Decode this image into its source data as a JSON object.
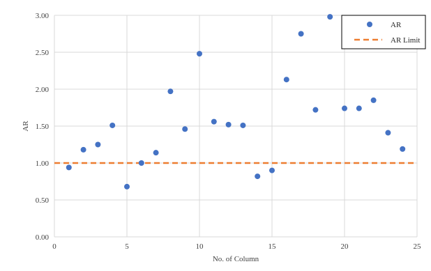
{
  "chart_data": {
    "type": "scatter",
    "title": "",
    "xlabel": "No. of Column",
    "ylabel": "AR",
    "xlim": [
      0,
      25
    ],
    "ylim": [
      0,
      3.0
    ],
    "x_ticks": [
      "0",
      "5",
      "10",
      "15",
      "20",
      "25"
    ],
    "y_ticks": [
      "0.00",
      "0.50",
      "1.00",
      "1.50",
      "2.00",
      "2.50",
      "3.00"
    ],
    "grid": "both",
    "legend_position": "top-right",
    "series": [
      {
        "name": "AR",
        "kind": "scatter",
        "color": "#4472C4",
        "points": [
          {
            "x": 1,
            "y": 0.94
          },
          {
            "x": 2,
            "y": 1.18
          },
          {
            "x": 3,
            "y": 1.25
          },
          {
            "x": 4,
            "y": 1.51
          },
          {
            "x": 5,
            "y": 0.68
          },
          {
            "x": 6,
            "y": 1.0
          },
          {
            "x": 7,
            "y": 1.14
          },
          {
            "x": 8,
            "y": 1.97
          },
          {
            "x": 9,
            "y": 1.46
          },
          {
            "x": 10,
            "y": 2.48
          },
          {
            "x": 11,
            "y": 1.56
          },
          {
            "x": 12,
            "y": 1.52
          },
          {
            "x": 13,
            "y": 1.51
          },
          {
            "x": 14,
            "y": 0.82
          },
          {
            "x": 15,
            "y": 0.9
          },
          {
            "x": 16,
            "y": 2.13
          },
          {
            "x": 17,
            "y": 2.75
          },
          {
            "x": 18,
            "y": 1.72
          },
          {
            "x": 19,
            "y": 2.98
          },
          {
            "x": 20,
            "y": 1.74
          },
          {
            "x": 21,
            "y": 1.74
          },
          {
            "x": 22,
            "y": 1.85
          },
          {
            "x": 23,
            "y": 1.41
          },
          {
            "x": 24,
            "y": 1.19
          }
        ]
      },
      {
        "name": "AR Limit",
        "kind": "hline",
        "color": "#ED7D31",
        "dash": "dashed",
        "y": 1.0
      }
    ]
  }
}
